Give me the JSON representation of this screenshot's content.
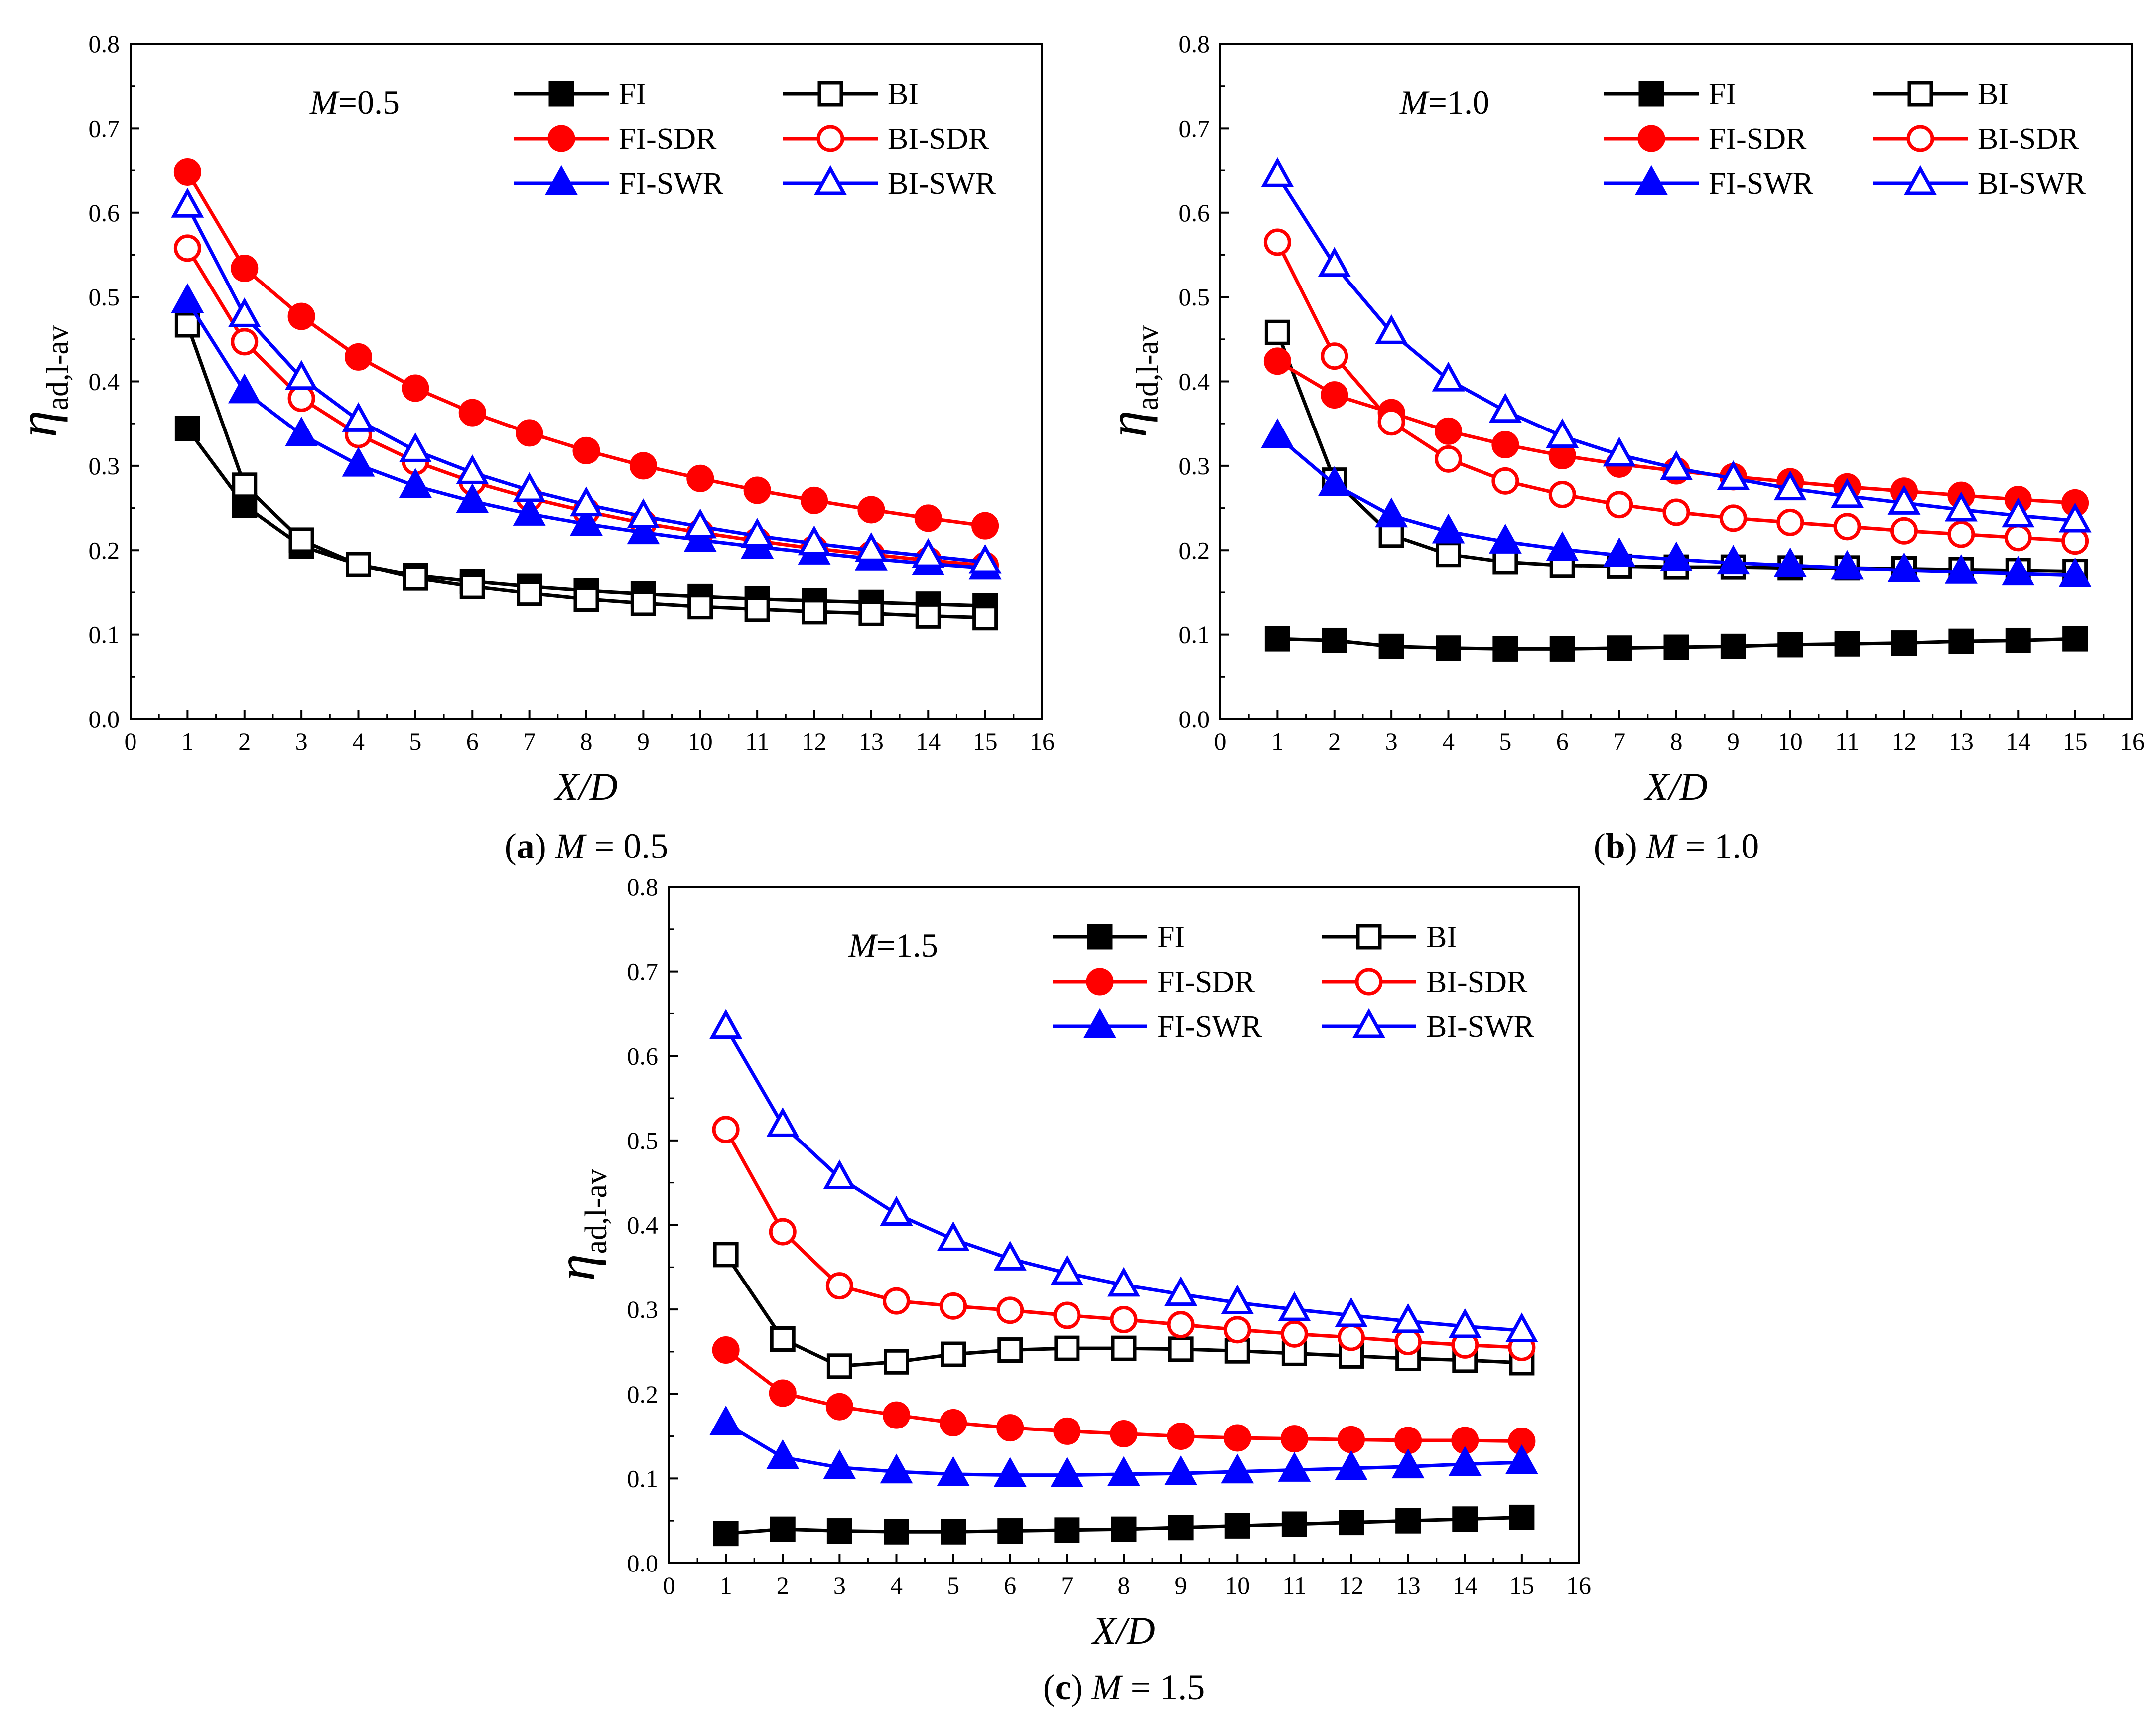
{
  "figure": {
    "colors": {
      "black": "#000000",
      "red": "#ff0000",
      "blue": "#0000ff"
    },
    "x_ticks": [
      "0",
      "1",
      "2",
      "3",
      "4",
      "5",
      "6",
      "7",
      "8",
      "9",
      "10",
      "11",
      "12",
      "13",
      "14",
      "15",
      "16"
    ],
    "y_ticks": [
      "0.0",
      "0.1",
      "0.2",
      "0.3",
      "0.4",
      "0.5",
      "0.6",
      "0.7",
      "0.8"
    ]
  },
  "chart_data": [
    {
      "type": "line",
      "panel": "a",
      "annotation": {
        "var": "M",
        "value": "=0.5"
      },
      "caption": {
        "label": "a",
        "var": "M",
        "value": " = 0.5"
      },
      "xlabel": "X/D",
      "ylabel": {
        "symbol": "η",
        "sub": "ad,l-av"
      },
      "xlim": [
        0,
        16
      ],
      "ylim": [
        0,
        0.8
      ],
      "x": [
        1,
        2,
        3,
        4,
        5,
        6,
        7,
        8,
        9,
        10,
        11,
        12,
        13,
        14,
        15
      ],
      "series": [
        {
          "name": "FI",
          "color": "#000000",
          "marker": "square",
          "filled": true,
          "values": [
            0.344,
            0.253,
            0.205,
            0.183,
            0.17,
            0.163,
            0.157,
            0.152,
            0.148,
            0.145,
            0.142,
            0.14,
            0.138,
            0.136,
            0.134
          ]
        },
        {
          "name": "BI",
          "color": "#000000",
          "marker": "square",
          "filled": false,
          "values": [
            0.467,
            0.277,
            0.212,
            0.183,
            0.167,
            0.157,
            0.149,
            0.142,
            0.137,
            0.133,
            0.13,
            0.127,
            0.125,
            0.122,
            0.12
          ]
        },
        {
          "name": "FI-SDR",
          "color": "#ff0000",
          "marker": "circle",
          "filled": true,
          "values": [
            0.648,
            0.534,
            0.477,
            0.429,
            0.392,
            0.363,
            0.339,
            0.318,
            0.3,
            0.285,
            0.271,
            0.259,
            0.248,
            0.238,
            0.229
          ]
        },
        {
          "name": "BI-SDR",
          "color": "#ff0000",
          "marker": "circle",
          "filled": false,
          "values": [
            0.558,
            0.447,
            0.38,
            0.337,
            0.305,
            0.281,
            0.262,
            0.246,
            0.232,
            0.221,
            0.211,
            0.202,
            0.195,
            0.188,
            0.182
          ]
        },
        {
          "name": "FI-SWR",
          "color": "#0000ff",
          "marker": "triangle",
          "filled": true,
          "values": [
            0.495,
            0.388,
            0.337,
            0.301,
            0.276,
            0.258,
            0.243,
            0.231,
            0.221,
            0.212,
            0.204,
            0.197,
            0.19,
            0.184,
            0.179
          ]
        },
        {
          "name": "BI-SWR",
          "color": "#0000ff",
          "marker": "triangle",
          "filled": false,
          "values": [
            0.608,
            0.478,
            0.404,
            0.354,
            0.318,
            0.292,
            0.271,
            0.254,
            0.24,
            0.228,
            0.217,
            0.208,
            0.2,
            0.193,
            0.186
          ]
        }
      ]
    },
    {
      "type": "line",
      "panel": "b",
      "annotation": {
        "var": "M",
        "value": "=1.0"
      },
      "caption": {
        "label": "b",
        "var": "M",
        "value": " = 1.0"
      },
      "xlabel": "X/D",
      "ylabel": {
        "symbol": "η",
        "sub": "ad,l-av"
      },
      "xlim": [
        0,
        16
      ],
      "ylim": [
        0,
        0.8
      ],
      "x": [
        1,
        2,
        3,
        4,
        5,
        6,
        7,
        8,
        9,
        10,
        11,
        12,
        13,
        14,
        15
      ],
      "series": [
        {
          "name": "FI",
          "color": "#000000",
          "marker": "square",
          "filled": true,
          "values": [
            0.095,
            0.093,
            0.086,
            0.084,
            0.083,
            0.083,
            0.084,
            0.085,
            0.086,
            0.088,
            0.089,
            0.09,
            0.092,
            0.093,
            0.095
          ]
        },
        {
          "name": "BI",
          "color": "#000000",
          "marker": "square",
          "filled": false,
          "values": [
            0.458,
            0.283,
            0.218,
            0.195,
            0.186,
            0.182,
            0.181,
            0.18,
            0.18,
            0.179,
            0.179,
            0.178,
            0.177,
            0.176,
            0.175
          ]
        },
        {
          "name": "FI-SDR",
          "color": "#ff0000",
          "marker": "circle",
          "filled": true,
          "values": [
            0.424,
            0.384,
            0.363,
            0.341,
            0.325,
            0.312,
            0.302,
            0.294,
            0.287,
            0.281,
            0.275,
            0.27,
            0.265,
            0.26,
            0.256
          ]
        },
        {
          "name": "BI-SDR",
          "color": "#ff0000",
          "marker": "circle",
          "filled": false,
          "values": [
            0.565,
            0.43,
            0.352,
            0.308,
            0.282,
            0.266,
            0.254,
            0.245,
            0.238,
            0.233,
            0.228,
            0.223,
            0.219,
            0.215,
            0.211
          ]
        },
        {
          "name": "FI-SWR",
          "color": "#0000ff",
          "marker": "triangle",
          "filled": true,
          "values": [
            0.335,
            0.278,
            0.241,
            0.222,
            0.21,
            0.201,
            0.194,
            0.189,
            0.185,
            0.182,
            0.179,
            0.176,
            0.174,
            0.172,
            0.17
          ]
        },
        {
          "name": "BI-SWR",
          "color": "#0000ff",
          "marker": "triangle",
          "filled": false,
          "values": [
            0.644,
            0.538,
            0.458,
            0.402,
            0.365,
            0.335,
            0.313,
            0.297,
            0.285,
            0.273,
            0.264,
            0.256,
            0.248,
            0.241,
            0.235
          ]
        }
      ]
    },
    {
      "type": "line",
      "panel": "c",
      "annotation": {
        "var": "M",
        "value": "=1.5"
      },
      "caption": {
        "label": "c",
        "var": "M",
        "value": " = 1.5"
      },
      "xlabel": "X/D",
      "ylabel": {
        "symbol": "η",
        "sub": "ad,l-av"
      },
      "xlim": [
        0,
        16
      ],
      "ylim": [
        0,
        0.8
      ],
      "x": [
        1,
        2,
        3,
        4,
        5,
        6,
        7,
        8,
        9,
        10,
        11,
        12,
        13,
        14,
        15
      ],
      "series": [
        {
          "name": "FI",
          "color": "#000000",
          "marker": "square",
          "filled": true,
          "values": [
            0.035,
            0.04,
            0.038,
            0.037,
            0.037,
            0.038,
            0.039,
            0.04,
            0.042,
            0.044,
            0.046,
            0.048,
            0.05,
            0.052,
            0.054
          ]
        },
        {
          "name": "BI",
          "color": "#000000",
          "marker": "square",
          "filled": false,
          "values": [
            0.365,
            0.265,
            0.233,
            0.238,
            0.247,
            0.252,
            0.254,
            0.254,
            0.253,
            0.251,
            0.248,
            0.245,
            0.242,
            0.24,
            0.237
          ]
        },
        {
          "name": "FI-SDR",
          "color": "#ff0000",
          "marker": "circle",
          "filled": true,
          "values": [
            0.252,
            0.201,
            0.185,
            0.175,
            0.166,
            0.16,
            0.156,
            0.153,
            0.15,
            0.148,
            0.147,
            0.146,
            0.145,
            0.145,
            0.144
          ]
        },
        {
          "name": "BI-SDR",
          "color": "#ff0000",
          "marker": "circle",
          "filled": false,
          "values": [
            0.513,
            0.392,
            0.328,
            0.31,
            0.304,
            0.299,
            0.293,
            0.288,
            0.282,
            0.276,
            0.271,
            0.267,
            0.262,
            0.258,
            0.255
          ]
        },
        {
          "name": "FI-SWR",
          "color": "#0000ff",
          "marker": "triangle",
          "filled": true,
          "values": [
            0.165,
            0.125,
            0.113,
            0.108,
            0.105,
            0.104,
            0.104,
            0.105,
            0.106,
            0.108,
            0.11,
            0.112,
            0.114,
            0.117,
            0.119
          ]
        },
        {
          "name": "BI-SWR",
          "color": "#0000ff",
          "marker": "triangle",
          "filled": false,
          "values": [
            0.634,
            0.518,
            0.456,
            0.413,
            0.383,
            0.36,
            0.343,
            0.329,
            0.318,
            0.308,
            0.3,
            0.293,
            0.286,
            0.28,
            0.275
          ]
        }
      ]
    }
  ]
}
